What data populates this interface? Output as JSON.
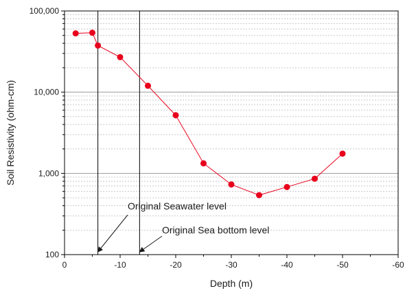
{
  "chart_data": {
    "type": "line",
    "xlabel": "Depth (m)",
    "ylabel": "Soil Resistivity (ohm-cm)",
    "xlim": [
      0,
      -60
    ],
    "ylim": [
      100,
      100000
    ],
    "yscale": "log",
    "x_ticks": [
      0,
      -10,
      -20,
      -30,
      -40,
      -50,
      -60
    ],
    "x_tick_labels": [
      "0",
      "-10",
      "-20",
      "-30",
      "-40",
      "-50",
      "-60"
    ],
    "y_ticks": [
      100,
      1000,
      10000,
      100000
    ],
    "y_tick_labels": [
      "100",
      "1,000",
      "10,000",
      "100,000"
    ],
    "grid": true,
    "series": [
      {
        "color": "#e8001c",
        "x": [
          -2,
          -5,
          -6,
          -10,
          -15,
          -20,
          -25,
          -30,
          -35,
          -40,
          -45,
          -50
        ],
        "y": [
          53000,
          54000,
          37500,
          27000,
          12000,
          5200,
          1330,
          730,
          540,
          680,
          860,
          1750
        ]
      }
    ],
    "vlines": [
      {
        "x": -6
      },
      {
        "x": -13.5
      }
    ],
    "annotations": [
      {
        "text": "Original Seawater level",
        "arrow_to_x": -6,
        "arrow_to_y": 100
      },
      {
        "text": "Original Sea bottom level",
        "arrow_to_x": -13.5,
        "arrow_to_y": 100
      }
    ]
  }
}
